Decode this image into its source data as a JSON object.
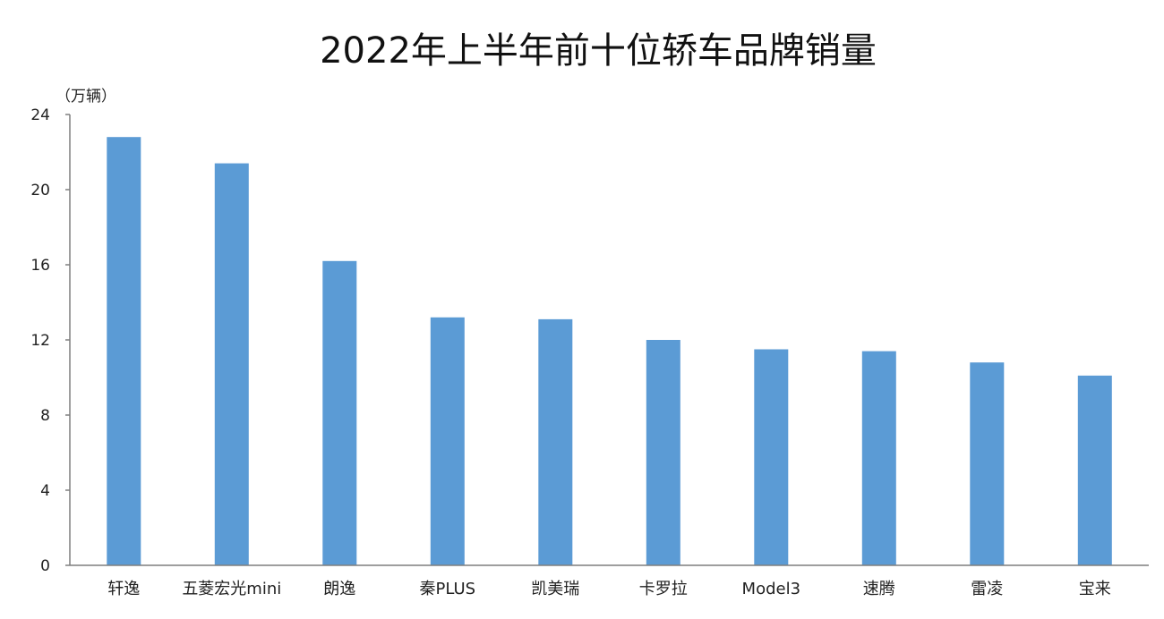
{
  "chart_data": {
    "type": "bar",
    "title": "2022年上半年前十位轿车品牌销量",
    "ylabel": "（万辆）",
    "xlabel": "",
    "categories": [
      "轩逸",
      "五菱宏光mini",
      "朗逸",
      "秦PLUS",
      "凯美瑞",
      "卡罗拉",
      "Model3",
      "速腾",
      "雷凌",
      "宝来"
    ],
    "values": [
      22.8,
      21.4,
      16.2,
      13.2,
      13.1,
      12.0,
      11.5,
      11.4,
      10.8,
      10.1
    ],
    "ylim": [
      0,
      24
    ],
    "yticks": [
      "0",
      "4",
      "8",
      "12",
      "16",
      "20",
      "24"
    ],
    "grid": false,
    "bar_color": "#5b9bd5",
    "axis_color": "#7f7f7f"
  }
}
